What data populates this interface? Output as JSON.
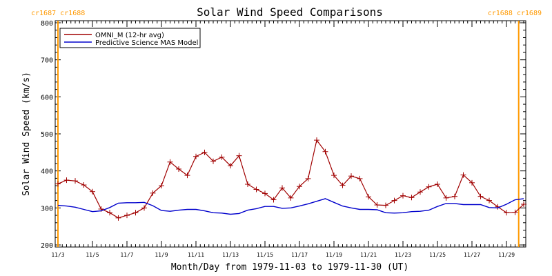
{
  "chart_data": {
    "type": "line",
    "title": "Solar Wind Speed Comparisons",
    "xlabel": "Month/Day from 1979-11-03 to 1979-11-30 (UT)",
    "ylabel": "Solar Wind Speed (km/s)",
    "xlim": [
      "1979-11-03",
      "1979-11-30"
    ],
    "ylim": [
      200,
      800
    ],
    "y_ticks": [
      200,
      300,
      400,
      500,
      600,
      700,
      800
    ],
    "x_tick_labels": [
      "11/3",
      "11/5",
      "11/7",
      "11/9",
      "11/11",
      "11/13",
      "11/15",
      "11/17",
      "11/19",
      "11/21",
      "11/23",
      "11/25",
      "11/27",
      "11/29"
    ],
    "x_tick_dates": [
      "1979-11-03",
      "1979-11-05",
      "1979-11-07",
      "1979-11-09",
      "1979-11-11",
      "1979-11-13",
      "1979-11-15",
      "1979-11-17",
      "1979-11-19",
      "1979-11-21",
      "1979-11-23",
      "1979-11-25",
      "1979-11-27",
      "1979-11-29"
    ],
    "x_minor_ticks_per_day": 4,
    "legend_position": "top-left",
    "carrington_markers": [
      {
        "label": "cr1687 cr1688",
        "date": "1979-11-03",
        "side": "left"
      },
      {
        "label": "cr1688 cr1689",
        "date": "1979-11-29 17:00",
        "side": "right"
      }
    ],
    "series": [
      {
        "name": "OMNI_M (12-hr avg)",
        "color": "#a00000",
        "marker": "plus",
        "x": [
          "1979-11-03 00:00",
          "1979-11-03 12:00",
          "1979-11-04 00:00",
          "1979-11-04 12:00",
          "1979-11-05 00:00",
          "1979-11-05 12:00",
          "1979-11-06 00:00",
          "1979-11-06 12:00",
          "1979-11-07 00:00",
          "1979-11-07 12:00",
          "1979-11-08 00:00",
          "1979-11-08 12:00",
          "1979-11-09 00:00",
          "1979-11-09 12:00",
          "1979-11-10 00:00",
          "1979-11-10 12:00",
          "1979-11-11 00:00",
          "1979-11-11 12:00",
          "1979-11-12 00:00",
          "1979-11-12 12:00",
          "1979-11-13 00:00",
          "1979-11-13 12:00",
          "1979-11-14 00:00",
          "1979-11-14 12:00",
          "1979-11-15 00:00",
          "1979-11-15 12:00",
          "1979-11-16 00:00",
          "1979-11-16 12:00",
          "1979-11-17 00:00",
          "1979-11-17 12:00",
          "1979-11-18 00:00",
          "1979-11-18 12:00",
          "1979-11-19 00:00",
          "1979-11-19 12:00",
          "1979-11-20 00:00",
          "1979-11-20 12:00",
          "1979-11-21 00:00",
          "1979-11-21 12:00",
          "1979-11-22 00:00",
          "1979-11-22 12:00",
          "1979-11-23 00:00",
          "1979-11-23 12:00",
          "1979-11-24 00:00",
          "1979-11-24 12:00",
          "1979-11-25 00:00",
          "1979-11-25 12:00",
          "1979-11-26 00:00",
          "1979-11-26 12:00",
          "1979-11-27 00:00",
          "1979-11-27 12:00",
          "1979-11-28 00:00",
          "1979-11-28 12:00",
          "1979-11-29 00:00",
          "1979-11-29 12:00",
          "1979-11-30 00:00"
        ],
        "values": [
          365,
          375,
          373,
          362,
          344,
          297,
          287,
          273,
          280,
          287,
          300,
          340,
          360,
          424,
          405,
          388,
          439,
          450,
          426,
          437,
          414,
          441,
          364,
          350,
          339,
          322,
          354,
          327,
          358,
          379,
          483,
          452,
          388,
          361,
          386,
          379,
          330,
          308,
          307,
          320,
          333,
          328,
          343,
          357,
          364,
          327,
          331,
          389,
          368,
          331,
          320,
          303,
          287,
          288,
          310
        ]
      },
      {
        "name": "Predictive Science MAS Model",
        "color": "#0000cc",
        "marker": "none",
        "x": [
          "1979-11-03 00:00",
          "1979-11-03 12:00",
          "1979-11-04 00:00",
          "1979-11-04 12:00",
          "1979-11-05 00:00",
          "1979-11-05 12:00",
          "1979-11-06 00:00",
          "1979-11-06 12:00",
          "1979-11-07 00:00",
          "1979-11-07 12:00",
          "1979-11-08 00:00",
          "1979-11-08 12:00",
          "1979-11-09 00:00",
          "1979-11-09 12:00",
          "1979-11-10 00:00",
          "1979-11-10 12:00",
          "1979-11-11 00:00",
          "1979-11-11 12:00",
          "1979-11-12 00:00",
          "1979-11-12 12:00",
          "1979-11-13 00:00",
          "1979-11-13 12:00",
          "1979-11-14 00:00",
          "1979-11-14 12:00",
          "1979-11-15 00:00",
          "1979-11-15 12:00",
          "1979-11-16 00:00",
          "1979-11-16 12:00",
          "1979-11-17 00:00",
          "1979-11-17 12:00",
          "1979-11-18 00:00",
          "1979-11-18 12:00",
          "1979-11-19 00:00",
          "1979-11-19 12:00",
          "1979-11-20 00:00",
          "1979-11-20 12:00",
          "1979-11-21 00:00",
          "1979-11-21 12:00",
          "1979-11-22 00:00",
          "1979-11-22 12:00",
          "1979-11-23 00:00",
          "1979-11-23 12:00",
          "1979-11-24 00:00",
          "1979-11-24 12:00",
          "1979-11-25 00:00",
          "1979-11-25 12:00",
          "1979-11-26 00:00",
          "1979-11-26 12:00",
          "1979-11-27 00:00",
          "1979-11-27 12:00",
          "1979-11-28 00:00",
          "1979-11-28 12:00",
          "1979-11-29 00:00",
          "1979-11-29 12:00",
          "1979-11-30 00:00"
        ],
        "values": [
          307,
          305,
          302,
          296,
          290,
          292,
          301,
          313,
          314,
          314,
          315,
          306,
          293,
          291,
          294,
          296,
          296,
          292,
          287,
          286,
          283,
          285,
          294,
          298,
          304,
          304,
          299,
          300,
          305,
          311,
          318,
          325,
          315,
          305,
          300,
          296,
          296,
          295,
          287,
          286,
          287,
          290,
          291,
          294,
          304,
          312,
          312,
          309,
          309,
          309,
          301,
          300,
          310,
          322,
          325
        ]
      }
    ]
  }
}
